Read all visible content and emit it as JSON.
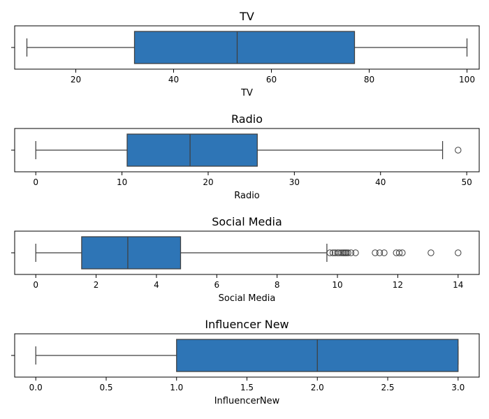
{
  "colors": {
    "box": "#2e75b6",
    "line": "#3f3f3f"
  },
  "chart_data": [
    {
      "type": "box",
      "title": "TV",
      "xlabel": "TV",
      "xlim": [
        7.5,
        102.5
      ],
      "xticks": [
        20,
        40,
        60,
        80,
        100
      ],
      "tick_labels": [
        "20",
        "40",
        "60",
        "80",
        "100"
      ],
      "stats": {
        "whislo": 10,
        "q1": 32,
        "median": 53,
        "q3": 77,
        "whishi": 100
      },
      "fliers": []
    },
    {
      "type": "box",
      "title": "Radio",
      "xlabel": "Radio",
      "xlim": [
        -2.45,
        51.45
      ],
      "xticks": [
        0,
        10,
        20,
        30,
        40,
        50
      ],
      "tick_labels": [
        "0",
        "10",
        "20",
        "30",
        "40",
        "50"
      ],
      "stats": {
        "whislo": 0,
        "q1": 10.6,
        "median": 17.9,
        "q3": 25.7,
        "whishi": 47.2
      },
      "fliers": [
        49
      ]
    },
    {
      "type": "box",
      "title": "Social Media",
      "xlabel": "Social Media",
      "xlim": [
        -0.7,
        14.7
      ],
      "xticks": [
        0,
        2,
        4,
        6,
        8,
        10,
        12,
        14
      ],
      "tick_labels": [
        "0",
        "2",
        "4",
        "6",
        "8",
        "10",
        "12",
        "14"
      ],
      "stats": {
        "whislo": 0,
        "q1": 1.52,
        "median": 3.05,
        "q3": 4.8,
        "whishi": 9.65
      },
      "fliers": [
        9.75,
        9.85,
        9.92,
        10.0,
        10.05,
        10.12,
        10.18,
        10.22,
        10.26,
        10.3,
        10.35,
        10.45,
        10.6,
        11.25,
        11.4,
        11.55,
        11.95,
        12.05,
        12.15,
        13.1,
        14.0
      ]
    },
    {
      "type": "box",
      "title": "Influencer New",
      "xlabel": "InfluencerNew",
      "xlim": [
        -0.15,
        3.15
      ],
      "xticks": [
        0.0,
        0.5,
        1.0,
        1.5,
        2.0,
        2.5,
        3.0
      ],
      "tick_labels": [
        "0.0",
        "0.5",
        "1.0",
        "1.5",
        "2.0",
        "2.5",
        "3.0"
      ],
      "stats": {
        "whislo": 0,
        "q1": 1,
        "median": 2,
        "q3": 3,
        "whishi": 3
      },
      "fliers": []
    }
  ]
}
